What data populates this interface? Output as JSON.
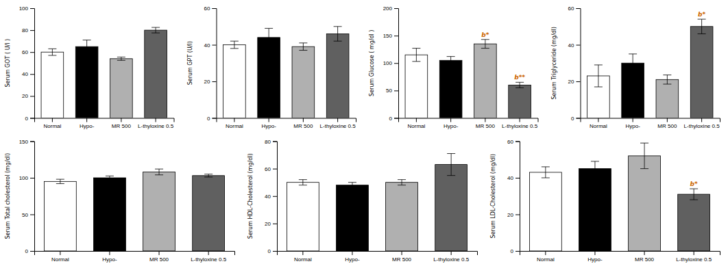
{
  "chart_data": [
    {
      "type": "bar",
      "ylabel": "Serum GOT ( U/l )",
      "categories": [
        "Normal",
        "Hypo-",
        "MR 500",
        "L-thyloxine 0.5"
      ],
      "values": [
        60,
        65,
        54,
        80
      ],
      "errors": [
        3,
        6,
        1.5,
        2.5
      ],
      "colors": [
        "white",
        "black",
        "#b0b0b0",
        "#606060"
      ],
      "ylim": [
        0,
        100
      ],
      "yticks": [
        0,
        20,
        40,
        60,
        80,
        100
      ],
      "annotations": []
    },
    {
      "type": "bar",
      "ylabel": "Serum GPT (U/l)",
      "categories": [
        "Normal",
        "Hypo-",
        "MR 500",
        "L-thyloxine 0.5"
      ],
      "values": [
        40,
        44,
        39,
        46
      ],
      "errors": [
        2,
        5,
        2,
        4
      ],
      "colors": [
        "white",
        "black",
        "#b0b0b0",
        "#606060"
      ],
      "ylim": [
        0,
        60
      ],
      "yticks": [
        0,
        20,
        40,
        60
      ],
      "annotations": []
    },
    {
      "type": "bar",
      "ylabel": "Serum Glucose ( mg/dl )",
      "categories": [
        "Normal",
        "Hypo-",
        "MR 500",
        "L-thyloxine 0.5"
      ],
      "values": [
        115,
        105,
        135,
        60
      ],
      "errors": [
        12,
        7,
        8,
        5
      ],
      "colors": [
        "white",
        "black",
        "#b0b0b0",
        "#606060"
      ],
      "ylim": [
        0,
        200
      ],
      "yticks": [
        0,
        50,
        100,
        150,
        200
      ],
      "annotations": [
        {
          "category": "MR 500",
          "text": "b*",
          "color": "#cc6600"
        },
        {
          "category": "L-thyloxine 0.5",
          "text": "b**",
          "color": "#cc6600"
        }
      ]
    },
    {
      "type": "bar",
      "ylabel": "Serum Triglyceride (mg/dl)",
      "categories": [
        "Normal",
        "Hypo-",
        "MR 500",
        "L-thyloxine 0.5"
      ],
      "values": [
        23,
        30,
        21,
        50
      ],
      "errors": [
        6,
        5,
        2.5,
        4
      ],
      "colors": [
        "white",
        "black",
        "#b0b0b0",
        "#606060"
      ],
      "ylim": [
        0,
        60
      ],
      "yticks": [
        0,
        20,
        40,
        60
      ],
      "annotations": [
        {
          "category": "L-thyloxine 0.5",
          "text": "b*",
          "color": "#cc6600"
        }
      ]
    },
    {
      "type": "bar",
      "ylabel": "Serum Total cholesterol (mg/dl)",
      "categories": [
        "Normal",
        "Hypo-",
        "MR 500",
        "L-thyloxine 0.5"
      ],
      "values": [
        95,
        100,
        108,
        103
      ],
      "errors": [
        3,
        2.5,
        4,
        2
      ],
      "colors": [
        "white",
        "black",
        "#b0b0b0",
        "#606060"
      ],
      "ylim": [
        0,
        150
      ],
      "yticks": [
        0,
        50,
        100,
        150
      ],
      "annotations": []
    },
    {
      "type": "bar",
      "ylabel": "Serum HDL-Cholesterol (mg/dl)",
      "categories": [
        "Normal",
        "Hypo-",
        "MR 500",
        "L-thyloxine 0.5"
      ],
      "values": [
        50,
        48,
        50,
        63
      ],
      "errors": [
        2,
        2,
        2,
        8
      ],
      "colors": [
        "white",
        "black",
        "#b0b0b0",
        "#606060"
      ],
      "ylim": [
        0,
        80
      ],
      "yticks": [
        0,
        20,
        40,
        60,
        80
      ],
      "annotations": []
    },
    {
      "type": "bar",
      "ylabel": "Serum LDL-Cholesterol (mg/dl)",
      "categories": [
        "Normal",
        "Hypo-",
        "MR 500",
        "L-thyloxine 0.5"
      ],
      "values": [
        43,
        45,
        52,
        31
      ],
      "errors": [
        3,
        4,
        7,
        3
      ],
      "colors": [
        "white",
        "black",
        "#b0b0b0",
        "#606060"
      ],
      "ylim": [
        0,
        60
      ],
      "yticks": [
        0,
        20,
        40,
        60
      ],
      "annotations": [
        {
          "category": "L-thyloxine 0.5",
          "text": "b*",
          "color": "#cc6600"
        }
      ]
    }
  ]
}
